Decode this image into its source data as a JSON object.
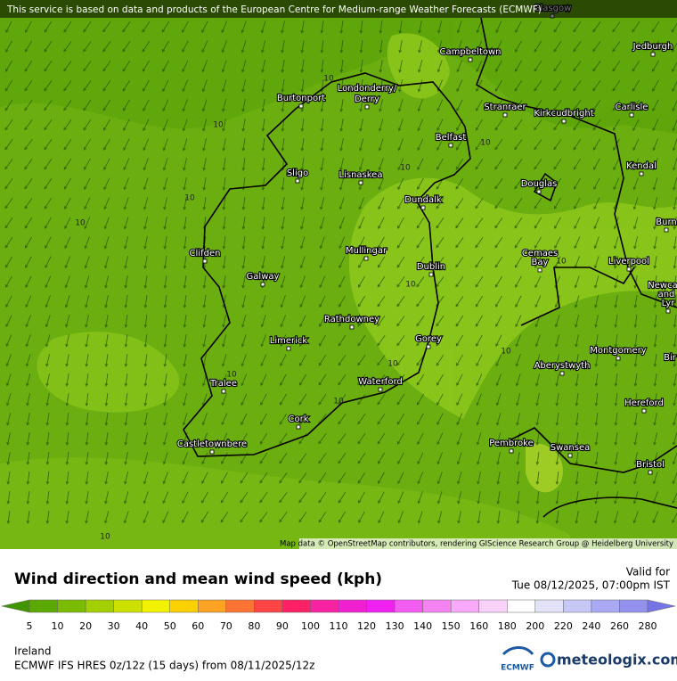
{
  "header": {
    "attribution": "This service is based on data and products of the European Centre for Medium-range Weather Forecasts (ECMWF)"
  },
  "map": {
    "cities": [
      "Glasgow",
      "Campbeltown",
      "Jedburgh",
      "Londonderry/",
      "Derry",
      "Burtonport",
      "Stranraer",
      "Kirkcudbright",
      "Carlisle",
      "Belfast",
      "Sligo",
      "Lisnaskea",
      "Kendal",
      "Douglas",
      "Dundalk",
      "Burn",
      "Mullingar",
      "Clifden",
      "Cemaes",
      "Bay",
      "Liverpool",
      "Dublin",
      "Galway",
      "Newca",
      "and",
      "Lyr",
      "Rathdowney",
      "Limerick",
      "Gorey",
      "Montgomery",
      "Bir",
      "Aberystwyth",
      "Tralee",
      "Waterford",
      "Hereford",
      "Cork",
      "Pembroke",
      "Castletownbere",
      "Swansea",
      "Bristol"
    ],
    "contour_labels": [
      "10",
      "10",
      "10",
      "10",
      "10",
      "10",
      "10",
      "10",
      "10",
      "10",
      "10",
      "10",
      "10"
    ],
    "credit": "Map data © OpenStreetMap contributors, rendering GIScience Research Group @ Heidelberg University"
  },
  "legend": {
    "title": "Wind direction and mean wind speed (kph)",
    "ticks": [
      5,
      10,
      20,
      30,
      40,
      50,
      60,
      70,
      80,
      90,
      100,
      110,
      120,
      130,
      140,
      150,
      160,
      180,
      200,
      220,
      240,
      260,
      280
    ],
    "colors": [
      "#3f9400",
      "#5aa800",
      "#7cbc00",
      "#a2cf00",
      "#cde100",
      "#f2f200",
      "#fdd000",
      "#fca324",
      "#fc7434",
      "#fc4444",
      "#fc2265",
      "#f822a2",
      "#f020d0",
      "#f020f0",
      "#f25cf0",
      "#f584f2",
      "#f8aaf8",
      "#f9d2f9",
      "#ffffff",
      "#e2e2f8",
      "#c8c8f6",
      "#aaaaf4",
      "#9292ee",
      "#7474e6"
    ]
  },
  "valid": {
    "label": "Valid for",
    "time": "Tue 08/12/2025, 07:00pm IST"
  },
  "footer": {
    "region": "Ireland",
    "model": "ECMWF IFS HRES 0z/12z (15 days) from  08/11/2025/12z",
    "ecmwf": "ECMWF",
    "brand": "meteologix.com"
  }
}
